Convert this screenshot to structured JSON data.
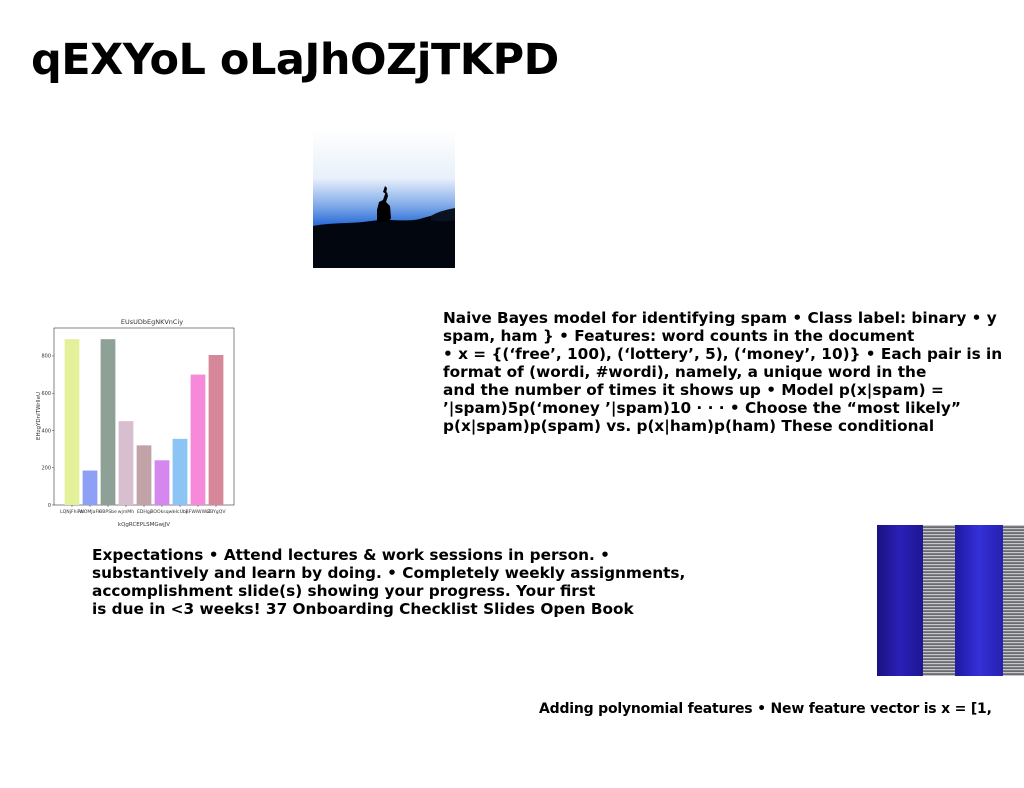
{
  "slide": {
    "title": "qEXYoL oLaJhOZjTKPD"
  },
  "photo": {
    "name": "camel-rider-silhouette-photo"
  },
  "bayes_text": {
    "lines": [
      "Naive Bayes model for identifying spam • Class label: binary • y",
      "spam, ham } • Features: word counts in the document",
      "• x = {(‘free’, 100), (‘lottery’, 5), (‘money’, 10)} • Each pair is in",
      "format of (wordi, #wordi), namely, a unique word in the",
      "and the number of times it shows up • Model p(x|spam) =",
      "’|spam)5p(‘money ’|spam)10 · · · • Choose the “most likely”",
      "p(x|spam)p(spam) vs. p(x|ham)p(ham) These conditional"
    ]
  },
  "expectations_text": {
    "lines": [
      "Expectations • Attend lectures & work sessions in person. •",
      "substantively and learn by doing. • Completely weekly assignments,",
      "accomplishment slide(s) showing your progress. Your first",
      "is due in <3 weeks! 37 Onboarding Checklist Slides Open Book"
    ]
  },
  "polynomial_text": {
    "lines": [
      "Adding polynomial features • New feature vector is x = [1,"
    ]
  },
  "chart_data": {
    "type": "bar",
    "title": "EUsUDbEgNKVnCiy",
    "xlabel": "kQgRCEPLSMGwjJV",
    "ylabel": "EHzgYDnITWrlleU",
    "categories": [
      "LQNjFhiRh",
      "WOMJaFk",
      "BBPSbe",
      "wjmMh",
      "EDHgj",
      "BOOksqwl",
      "eIcUbj",
      "BFWiWWiZ",
      "GBYgQV"
    ],
    "values": [
      890,
      185,
      890,
      450,
      320,
      240,
      355,
      700,
      805
    ],
    "colors": [
      "#e4f09a",
      "#8ea0f5",
      "#8ea197",
      "#d8bfcf",
      "#c0a2a7",
      "#d487ee",
      "#8cc4f5",
      "#f68ad8",
      "#d6889a"
    ],
    "ylim": [
      0,
      950
    ],
    "yticks": [
      0,
      200,
      400,
      600,
      800
    ],
    "grid": false,
    "legend": "none"
  }
}
